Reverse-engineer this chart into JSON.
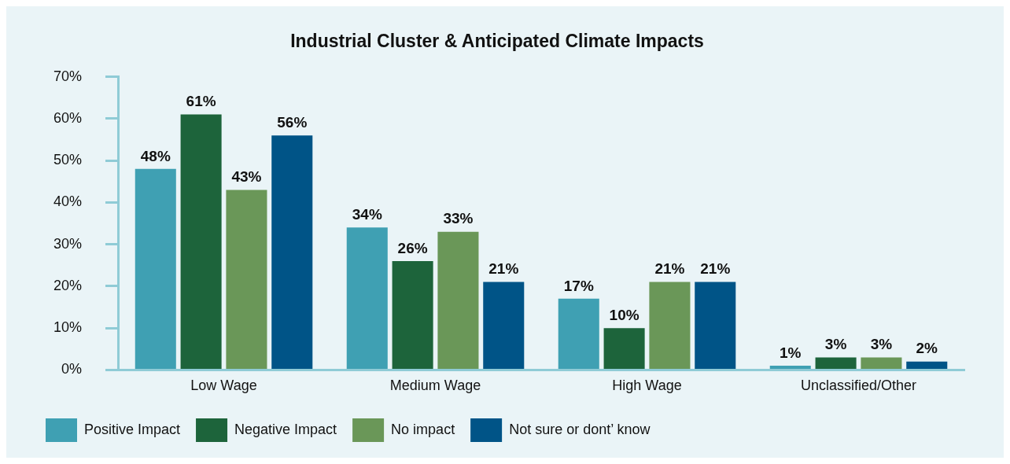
{
  "chart_data": {
    "type": "bar",
    "title": "Industrial Cluster & Anticipated Climate Impacts",
    "categories": [
      "Low Wage",
      "Medium Wage",
      "High Wage",
      "Unclassified/Other"
    ],
    "series": [
      {
        "name": "Positive Impact",
        "color": "#3fa0b3",
        "values": [
          48,
          34,
          17,
          1
        ],
        "value_labels": [
          "48%",
          "34%",
          "17%",
          "1%"
        ]
      },
      {
        "name": "Negative Impact",
        "color": "#1d643b",
        "values": [
          61,
          26,
          10,
          3
        ],
        "value_labels": [
          "61%",
          "26%",
          "10%",
          "3%"
        ]
      },
      {
        "name": "No impact",
        "color": "#6a9758",
        "values": [
          43,
          33,
          21,
          3
        ],
        "value_labels": [
          "43%",
          "33%",
          "21%",
          "3%"
        ]
      },
      {
        "name": "Not sure or dont’ know",
        "color": "#005487",
        "values": [
          56,
          21,
          21,
          2
        ],
        "value_labels": [
          "56%",
          "21%",
          "21%",
          "2%"
        ]
      }
    ],
    "ylim": [
      0,
      70
    ],
    "yticks": [
      {
        "value": 0,
        "label": "0%"
      },
      {
        "value": 10,
        "label": "10%"
      },
      {
        "value": 20,
        "label": "20%"
      },
      {
        "value": 30,
        "label": "30%"
      },
      {
        "value": 40,
        "label": "40%"
      },
      {
        "value": 50,
        "label": "50%"
      },
      {
        "value": 60,
        "label": "60%"
      },
      {
        "value": 70,
        "label": "70%"
      }
    ],
    "grid": false,
    "legend": "bottom"
  }
}
